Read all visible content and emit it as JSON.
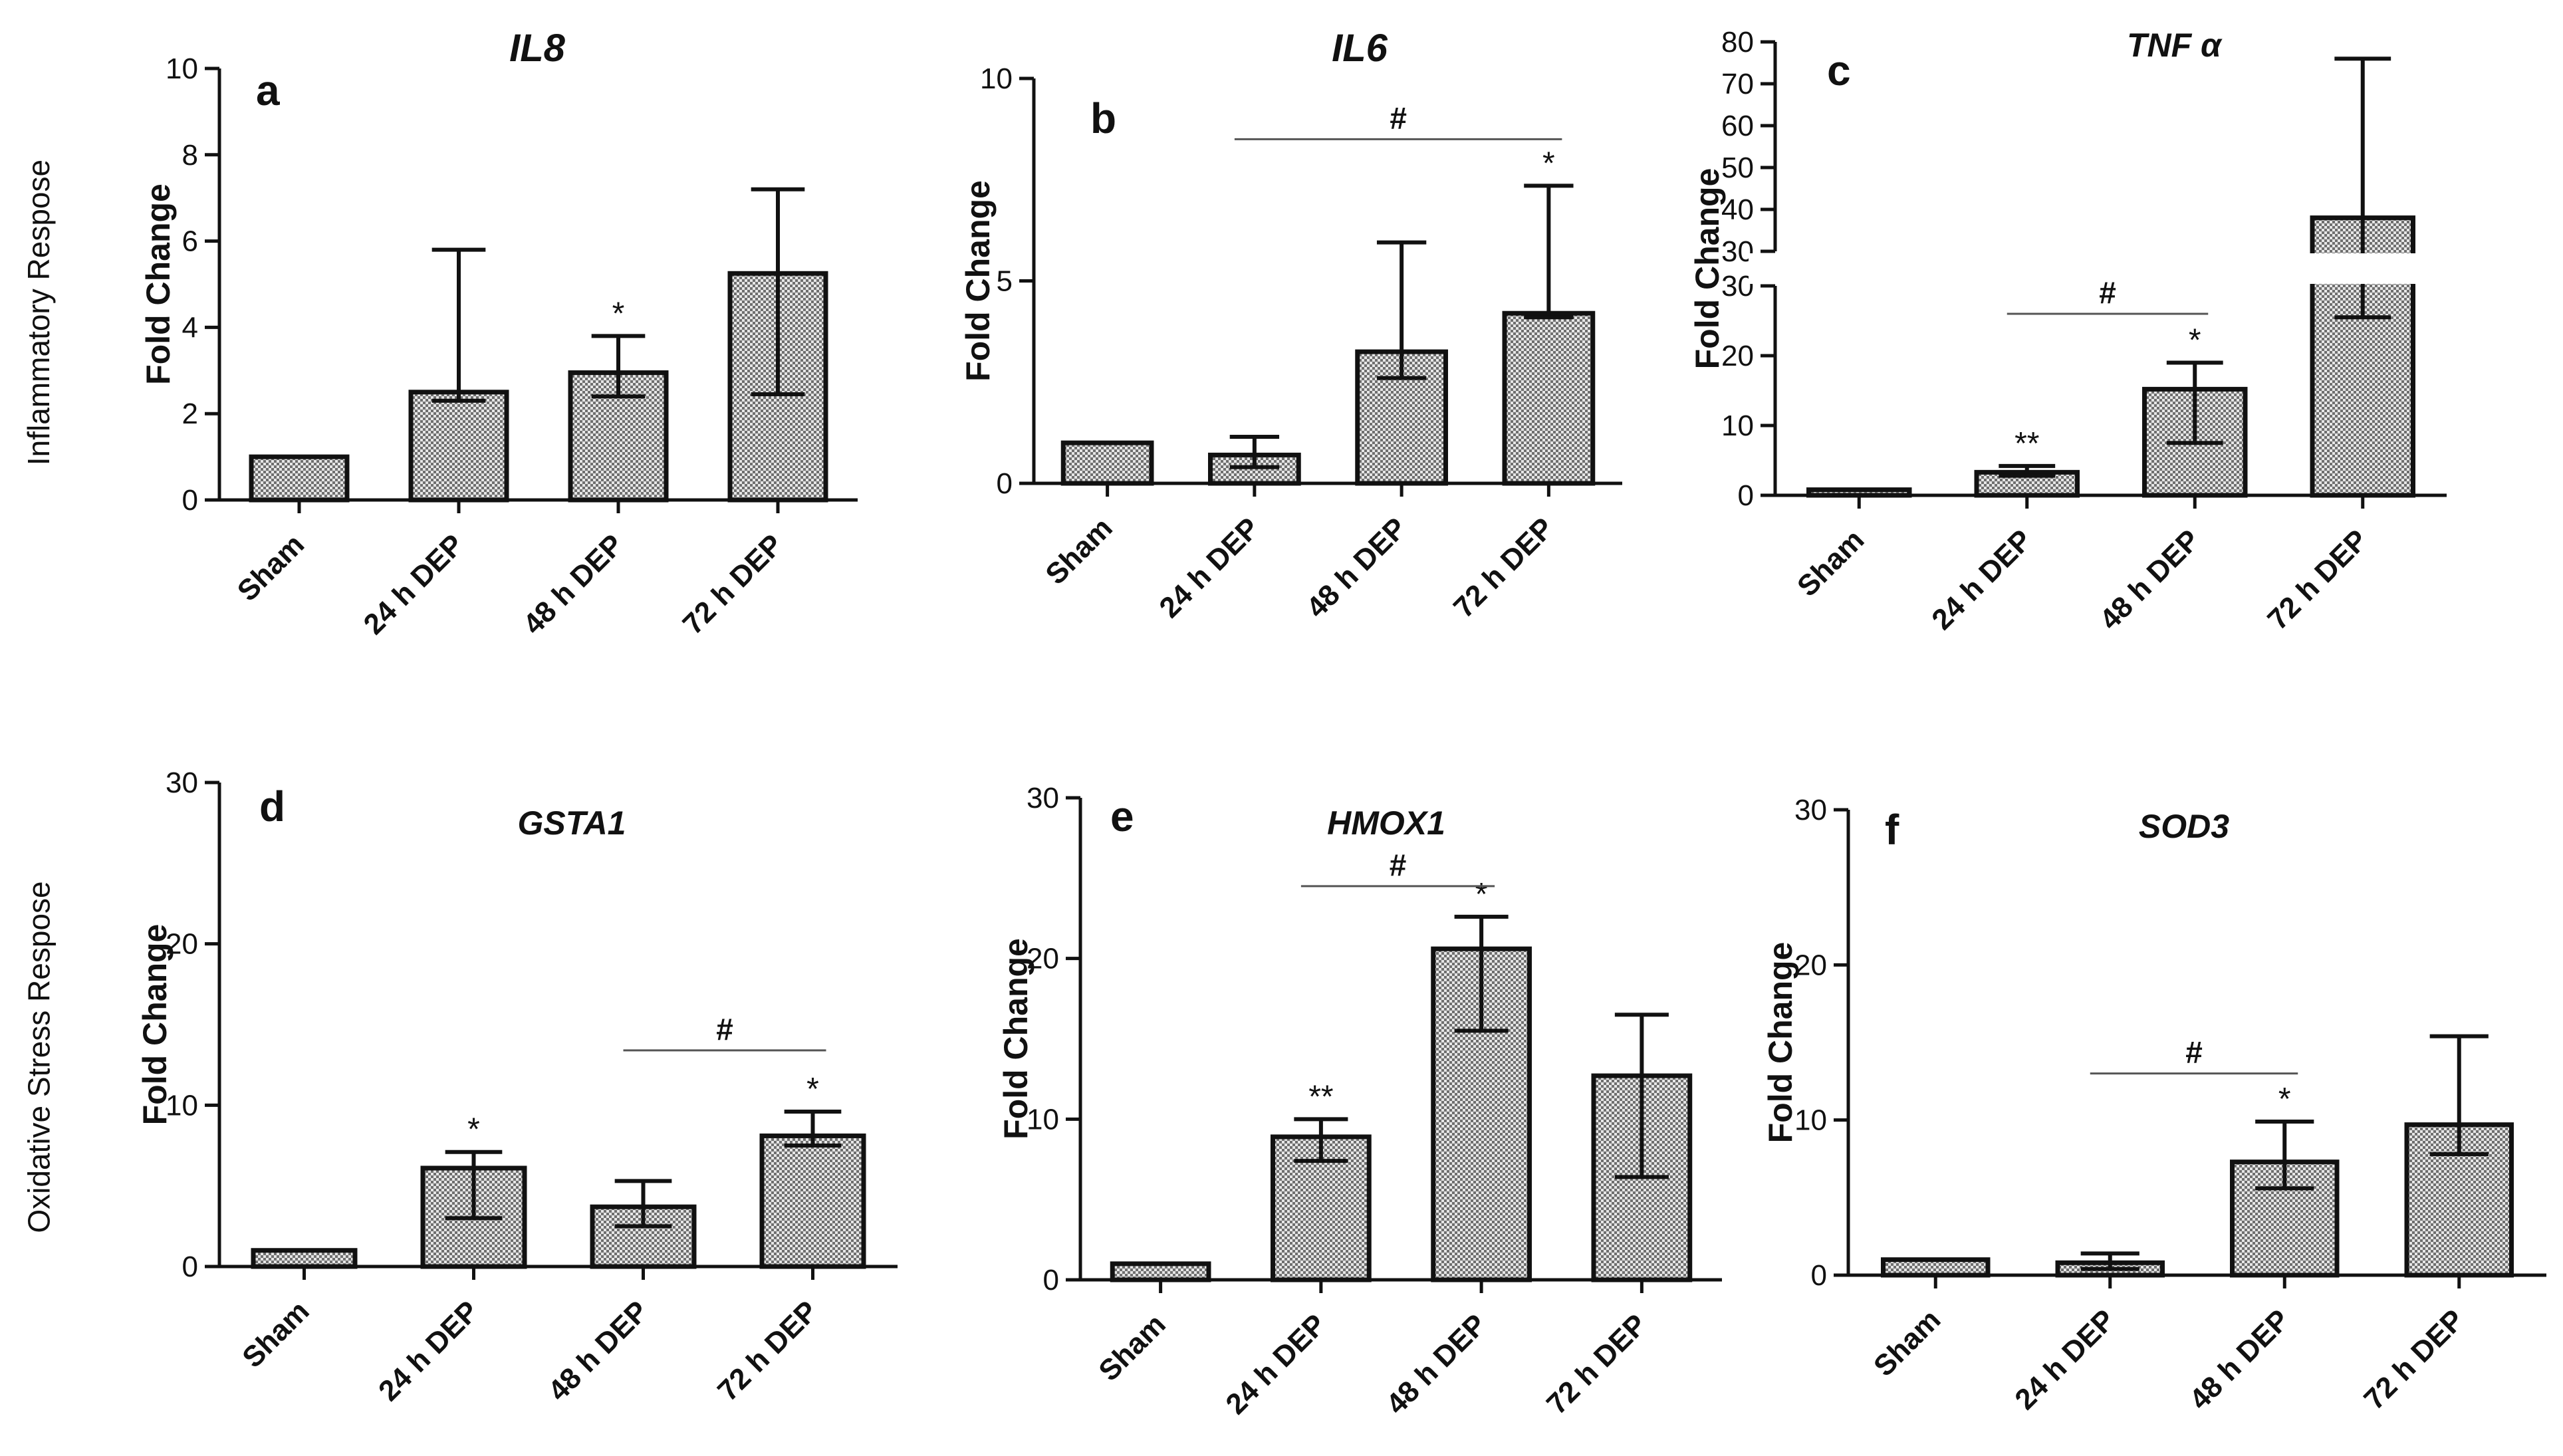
{
  "figure": {
    "row_labels": [
      "Inflammatory Respose",
      "Oxidative Stress  Respose"
    ]
  },
  "colors": {
    "bar_fill": "#8a8a8a",
    "bar_pattern_light": "#e6e6e6",
    "ink": "#111111",
    "sig_line": "#555555"
  },
  "chart_data": [
    {
      "type": "bar",
      "panel": "a",
      "title": "IL8",
      "title_style": "bold-italic",
      "categories": [
        "Sham",
        "24 h DEP",
        "48 h DEP",
        "72 h DEP"
      ],
      "values": [
        1.0,
        2.5,
        2.95,
        5.25
      ],
      "err_low": [
        1.0,
        2.3,
        2.4,
        2.45
      ],
      "err_high": [
        1.0,
        5.8,
        3.8,
        7.2
      ],
      "ylabel": "Fold Change",
      "ylim": [
        0,
        10
      ],
      "yticks": [
        0,
        2,
        4,
        6,
        8,
        10
      ],
      "annotations": [
        {
          "bar": 2,
          "text": "*"
        }
      ],
      "brackets": []
    },
    {
      "type": "bar",
      "panel": "b",
      "title": "IL6",
      "title_style": "bold-italic",
      "categories": [
        "Sham",
        "24 h DEP",
        "48 h DEP",
        "72 h DEP"
      ],
      "values": [
        1.0,
        0.7,
        3.25,
        4.2
      ],
      "err_low": [
        1.0,
        0.4,
        2.6,
        4.1
      ],
      "err_high": [
        1.0,
        1.15,
        5.95,
        7.35
      ],
      "ylabel": "Fold Change",
      "ylim": [
        0,
        10
      ],
      "yticks": [
        0,
        5,
        10
      ],
      "annotations": [
        {
          "bar": 3,
          "text": "*"
        }
      ],
      "brackets": [
        {
          "from": 1,
          "to": 3,
          "level": 8.5,
          "text": "#"
        }
      ]
    },
    {
      "type": "bar",
      "panel": "c",
      "title": "TNF α",
      "title_style": "bold-italic",
      "categories": [
        "Sham",
        "24 h DEP",
        "48 h DEP",
        "72 h DEP"
      ],
      "values": [
        0.8,
        3.3,
        15.2,
        38
      ],
      "err_low": [
        0.8,
        2.8,
        7.5,
        25.5
      ],
      "err_high": [
        0.8,
        4.2,
        19.0,
        76
      ],
      "ylabel": "Fold Change",
      "ylim": [
        0,
        80
      ],
      "axis_break": [
        30,
        30
      ],
      "yticks_lower": [
        0,
        10,
        20,
        30
      ],
      "yticks_upper": [
        30,
        40,
        50,
        60,
        70,
        80
      ],
      "annotations": [
        {
          "bar": 1,
          "text": "**"
        },
        {
          "bar": 2,
          "text": "*"
        }
      ],
      "brackets": [
        {
          "from": 1,
          "to": 2,
          "level": 26,
          "text": "#"
        }
      ]
    },
    {
      "type": "bar",
      "panel": "d",
      "title": "GSTA1",
      "title_style": "bold-italic",
      "categories": [
        "Sham",
        "24 h DEP",
        "48 h DEP",
        "72 h DEP"
      ],
      "values": [
        1.0,
        6.1,
        3.7,
        8.1
      ],
      "err_low": [
        1.0,
        3.0,
        2.5,
        7.5
      ],
      "err_high": [
        1.0,
        7.1,
        5.3,
        9.6
      ],
      "ylabel": "Fold Change",
      "ylim": [
        0,
        30
      ],
      "yticks": [
        0,
        10,
        20,
        30
      ],
      "annotations": [
        {
          "bar": 1,
          "text": "*"
        },
        {
          "bar": 3,
          "text": "*"
        }
      ],
      "brackets": [
        {
          "from": 2,
          "to": 3,
          "level": 13.4,
          "text": "#"
        }
      ]
    },
    {
      "type": "bar",
      "panel": "e",
      "title": "HMOX1",
      "title_style": "bold-italic",
      "categories": [
        "Sham",
        "24 h DEP",
        "48 h DEP",
        "72 h DEP"
      ],
      "values": [
        1.0,
        8.9,
        20.6,
        12.7
      ],
      "err_low": [
        1.0,
        7.4,
        15.5,
        6.4
      ],
      "err_high": [
        1.0,
        10.0,
        22.6,
        16.5
      ],
      "ylabel": "Fold Change",
      "ylim": [
        0,
        30
      ],
      "yticks": [
        0,
        10,
        20,
        30
      ],
      "annotations": [
        {
          "bar": 1,
          "text": "**"
        },
        {
          "bar": 2,
          "text": "*"
        }
      ],
      "brackets": [
        {
          "from": 1,
          "to": 2,
          "level": 24.5,
          "text": "#"
        }
      ]
    },
    {
      "type": "bar",
      "panel": "f",
      "title": "SOD3",
      "title_style": "bold-italic",
      "categories": [
        "Sham",
        "24 h DEP",
        "48 h DEP",
        "72 h DEP"
      ],
      "values": [
        1.0,
        0.8,
        7.3,
        9.7
      ],
      "err_low": [
        1.0,
        0.4,
        5.6,
        7.8
      ],
      "err_high": [
        1.0,
        1.4,
        9.9,
        15.4
      ],
      "ylabel": "Fold Change",
      "ylim": [
        0,
        30
      ],
      "yticks": [
        0,
        10,
        20,
        30
      ],
      "annotations": [
        {
          "bar": 2,
          "text": "*"
        }
      ],
      "brackets": [
        {
          "from": 1,
          "to": 2,
          "level": 13,
          "text": "#"
        }
      ]
    }
  ]
}
